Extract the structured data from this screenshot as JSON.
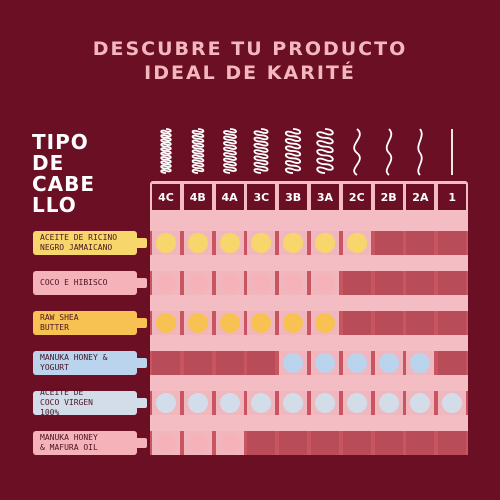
{
  "title_line1": "DESCUBRE TU PRODUCTO",
  "title_line2": "IDEAL DE KARITÉ",
  "hair_type_label_lines": [
    "TIPO",
    "DE",
    "CABE",
    "LLO"
  ],
  "hair_types": [
    "4C",
    "4B",
    "4A",
    "3C",
    "3B",
    "3A",
    "2C",
    "2B",
    "2A",
    "1"
  ],
  "products": [
    {
      "label_lines": [
        "ACEITE DE RICINO",
        "NEGRO JAMAICANO"
      ],
      "color": "#f7d66b",
      "dot_color": "#f7d66b",
      "suitable": [
        "4C",
        "4B",
        "4A",
        "3C",
        "3B",
        "3A",
        "2C"
      ]
    },
    {
      "label_lines": [
        "COCO E HIBISCO"
      ],
      "color": "#f6b2b9",
      "dot_color": "#f6b2b9",
      "suitable": [
        "4C",
        "4B",
        "4A",
        "3C",
        "3B",
        "3A"
      ]
    },
    {
      "label_lines": [
        "RAW SHEA",
        "BUTTER"
      ],
      "color": "#f8c253",
      "dot_color": "#f8c253",
      "suitable": [
        "4C",
        "4B",
        "4A",
        "3C",
        "3B",
        "3A"
      ]
    },
    {
      "label_lines": [
        "MANUKA HONEY &",
        "YOGURT"
      ],
      "color": "#b9d4ec",
      "dot_color": "#b9d4ec",
      "suitable": [
        "3B",
        "3A",
        "2C",
        "2B",
        "2A"
      ]
    },
    {
      "label_lines": [
        "ACEITE DE",
        "COCO VIRGEN",
        "100%"
      ],
      "color": "#d3ddea",
      "dot_color": "#d3ddea",
      "suitable": [
        "4C",
        "4B",
        "4A",
        "3C",
        "3B",
        "3A",
        "2C",
        "2B",
        "2A",
        "1"
      ]
    },
    {
      "label_lines": [
        "MANUKA HONEY",
        "& MAFURA OIL"
      ],
      "color": "#f6b2b9",
      "dot_color": "#f6b2b9",
      "suitable": [
        "4C",
        "4B",
        "4A"
      ]
    }
  ],
  "icons": {
    "hair_curl": "hair-curl-icon"
  }
}
